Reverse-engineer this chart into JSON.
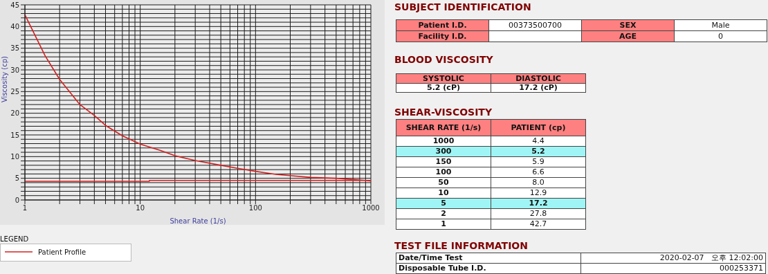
{
  "chart_data": [
    {
      "type": "line",
      "xlabel": "Shear Rate (1/s)",
      "ylabel": "Viscosity (cp)",
      "log": "x",
      "xlim": [
        1,
        1000
      ],
      "xticks": [
        1,
        {
          "value": 2,
          "label": null
        },
        {
          "value": 3,
          "label": null
        },
        {
          "value": 4,
          "label": null
        },
        {
          "value": 5,
          "label": null
        },
        {
          "value": 6,
          "label": null
        },
        {
          "value": 7,
          "label": null
        },
        {
          "value": 8,
          "label": null
        },
        {
          "value": 9,
          "label": null
        },
        10,
        {
          "value": 20,
          "label": null
        },
        {
          "value": 30,
          "label": null
        },
        {
          "value": 40,
          "label": null
        },
        {
          "value": 50,
          "label": null
        },
        {
          "value": 60,
          "label": null
        },
        {
          "value": 70,
          "label": null
        },
        {
          "value": 80,
          "label": null
        },
        {
          "value": 90,
          "label": null
        },
        100,
        {
          "value": 200,
          "label": null
        },
        {
          "value": 300,
          "label": null
        },
        {
          "value": 400,
          "label": null
        },
        {
          "value": 500,
          "label": null
        },
        {
          "value": 600,
          "label": null
        },
        {
          "value": 700,
          "label": null
        },
        {
          "value": 800,
          "label": null
        },
        {
          "value": 900,
          "label": null
        },
        1000
      ],
      "ylim": [
        0,
        45
      ],
      "yticks": [
        0,
        {
          "value": 1,
          "label": null
        },
        {
          "value": 2,
          "label": null
        },
        {
          "value": 3,
          "label": null
        },
        {
          "value": 4,
          "label": null
        },
        5,
        {
          "value": 6,
          "label": null
        },
        {
          "value": 7,
          "label": null
        },
        {
          "value": 8,
          "label": null
        },
        {
          "value": 9,
          "label": null
        },
        10,
        {
          "value": 11,
          "label": null
        },
        {
          "value": 12,
          "label": null
        },
        {
          "value": 13,
          "label": null
        },
        {
          "value": 14,
          "label": null
        },
        15,
        {
          "value": 16,
          "label": null
        },
        {
          "value": 17,
          "label": null
        },
        {
          "value": 18,
          "label": null
        },
        {
          "value": 19,
          "label": null
        },
        20,
        {
          "value": 21,
          "label": null
        },
        {
          "value": 22,
          "label": null
        },
        {
          "value": 23,
          "label": null
        },
        {
          "value": 24,
          "label": null
        },
        25,
        {
          "value": 26,
          "label": null
        },
        {
          "value": 27,
          "label": null
        },
        {
          "value": 28,
          "label": null
        },
        {
          "value": 29,
          "label": null
        },
        30,
        {
          "value": 31,
          "label": null
        },
        {
          "value": 32,
          "label": null
        },
        {
          "value": 33,
          "label": null
        },
        {
          "value": 34,
          "label": null
        },
        35,
        {
          "value": 36,
          "label": null
        },
        {
          "value": 37,
          "label": null
        },
        {
          "value": 38,
          "label": null
        },
        {
          "value": 39,
          "label": null
        },
        40,
        {
          "value": 41,
          "label": null
        },
        {
          "value": 42,
          "label": null
        },
        {
          "value": 43,
          "label": null
        },
        {
          "value": 44,
          "label": null
        },
        45
      ],
      "grid": true,
      "legend": "bottom left",
      "legend_title": "LEGEND",
      "series": [
        {
          "name": "Patient Profile",
          "color": "#d42020",
          "x": [
            1,
            1.5,
            2,
            3,
            4,
            5,
            7,
            10,
            15,
            20,
            30,
            50,
            70,
            100,
            150,
            300,
            500,
            1000,
            1000,
            12,
            12,
            1
          ],
          "values": [
            42.7,
            33.2,
            27.8,
            22,
            19.5,
            17.2,
            14.8,
            12.9,
            11.4,
            10.2,
            9.1,
            8.0,
            7.3,
            6.6,
            5.9,
            5.2,
            5.0,
            4.4,
            4.5,
            4.5,
            4.3,
            4.3
          ]
        }
      ]
    },
    {
      "type": "other",
      "title": "SUBJECT IDENTIFICATION",
      "annotations": [
        "Patient I.D.",
        "00373500700",
        "SEX",
        "Male",
        "Facility I.D.",
        "AGE",
        "0"
      ]
    },
    {
      "type": "other",
      "title": "BLOOD VISCOSITY",
      "annotations": [
        "SYSTOLIC",
        "DIASTOLIC",
        "5.2 (cP)",
        "17.2 (cP)"
      ]
    },
    {
      "type": "other",
      "title": "SHEAR-VISCOSITY",
      "annotations": [
        "SHEAR RATE (1/s)",
        "PATIENT (cp)",
        "1000",
        "4.4",
        "300",
        "5.2",
        "150",
        "5.9",
        "100",
        "6.6",
        "50",
        "8.0",
        "10",
        "12.9",
        "5",
        "17.2",
        "2",
        "27.8",
        "1",
        "42.7"
      ]
    },
    {
      "type": "other",
      "title": "TEST FILE INFORMATION",
      "annotations": [
        "Date/Time Test",
        "2020-02-07   오후 12:02:00",
        "Disposable Tube I.D.",
        "000253371"
      ]
    }
  ]
}
